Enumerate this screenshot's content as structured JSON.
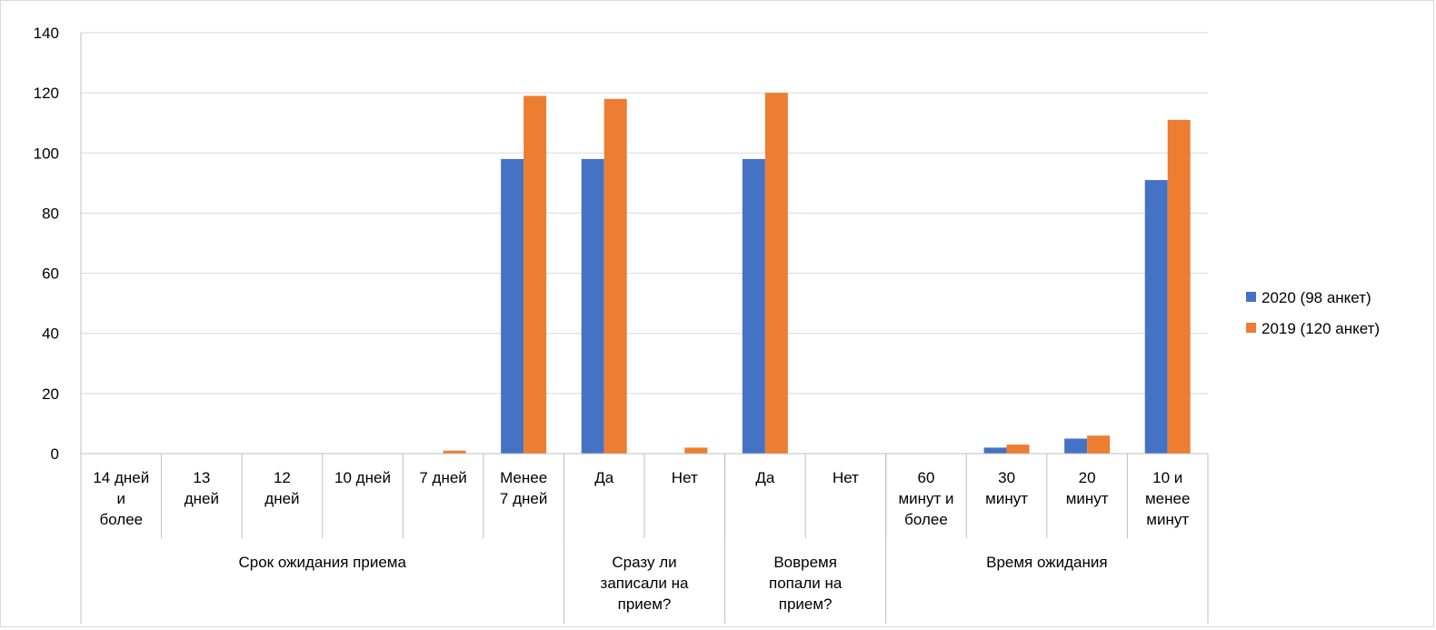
{
  "chart_data": {
    "type": "bar",
    "ylim": [
      0,
      140
    ],
    "yticks": [
      "0",
      "20",
      "40",
      "60",
      "80",
      "100",
      "120",
      "140"
    ],
    "grid": true,
    "legend_placement": "right",
    "categories": [
      [
        "14 дней",
        "и",
        "более"
      ],
      [
        "13",
        "дней"
      ],
      [
        "12",
        "дней"
      ],
      [
        "10 дней"
      ],
      [
        "7 дней"
      ],
      [
        "Менее",
        "7 дней"
      ],
      [
        "Да"
      ],
      [
        "Нет"
      ],
      [
        "Да"
      ],
      [
        "Нет"
      ],
      [
        "60",
        "минут и",
        "более"
      ],
      [
        "30",
        "минут"
      ],
      [
        "20",
        "минут"
      ],
      [
        "10 и",
        "менее",
        "минут"
      ]
    ],
    "groups": [
      {
        "label": [
          "Срок ожидания приема"
        ],
        "start": 0,
        "end": 5
      },
      {
        "label": [
          "Сразу ли",
          "записали на",
          "прием?"
        ],
        "start": 6,
        "end": 7
      },
      {
        "label": [
          "Вовремя",
          "попали на",
          "прием?"
        ],
        "start": 8,
        "end": 9
      },
      {
        "label": [
          "Время ожидания"
        ],
        "start": 10,
        "end": 13
      }
    ],
    "series": [
      {
        "name": "2020 (98 анкет)",
        "color": "#4472C4",
        "values": [
          0,
          0,
          0,
          0,
          0,
          98,
          98,
          0,
          98,
          0,
          0,
          2,
          5,
          91
        ]
      },
      {
        "name": "2019 (120 анкет)",
        "color": "#ED7D31",
        "values": [
          0,
          0,
          0,
          0,
          1,
          119,
          118,
          2,
          120,
          0,
          0,
          3,
          6,
          111
        ]
      }
    ]
  }
}
